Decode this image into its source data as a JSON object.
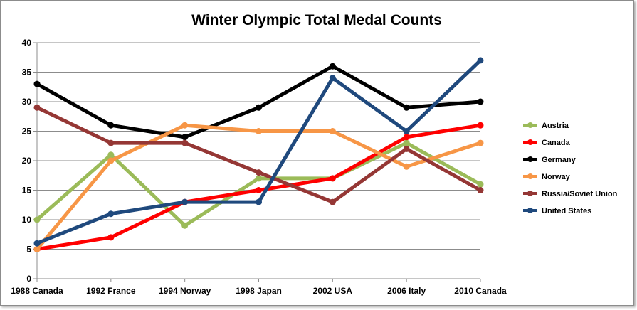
{
  "chart_data": {
    "type": "line",
    "title": "Winter Olympic Total Medal Counts",
    "xlabel": "",
    "ylabel": "",
    "categories": [
      "1988 Canada",
      "1992 France",
      "1994 Norway",
      "1998 Japan",
      "2002 USA",
      "2006 Italy",
      "2010 Canada"
    ],
    "ylim": [
      0,
      40
    ],
    "yticks": [
      0,
      5,
      10,
      15,
      20,
      25,
      30,
      35,
      40
    ],
    "grid": true,
    "legend_position": "right",
    "series": [
      {
        "name": "Austria",
        "color": "#9bbb59",
        "values": [
          10,
          21,
          9,
          17,
          17,
          23,
          16
        ]
      },
      {
        "name": "Canada",
        "color": "#ff0000",
        "values": [
          5,
          7,
          13,
          15,
          17,
          24,
          26
        ]
      },
      {
        "name": "Germany",
        "color": "#000000",
        "values": [
          33,
          26,
          24,
          29,
          36,
          29,
          30
        ]
      },
      {
        "name": "Norway",
        "color": "#f79646",
        "values": [
          5,
          20,
          26,
          25,
          25,
          19,
          23
        ]
      },
      {
        "name": "Russia/Soviet Union",
        "color": "#953735",
        "values": [
          29,
          23,
          23,
          18,
          13,
          22,
          15
        ]
      },
      {
        "name": "United States",
        "color": "#1f497d",
        "values": [
          6,
          11,
          13,
          13,
          34,
          25,
          37
        ]
      }
    ]
  }
}
